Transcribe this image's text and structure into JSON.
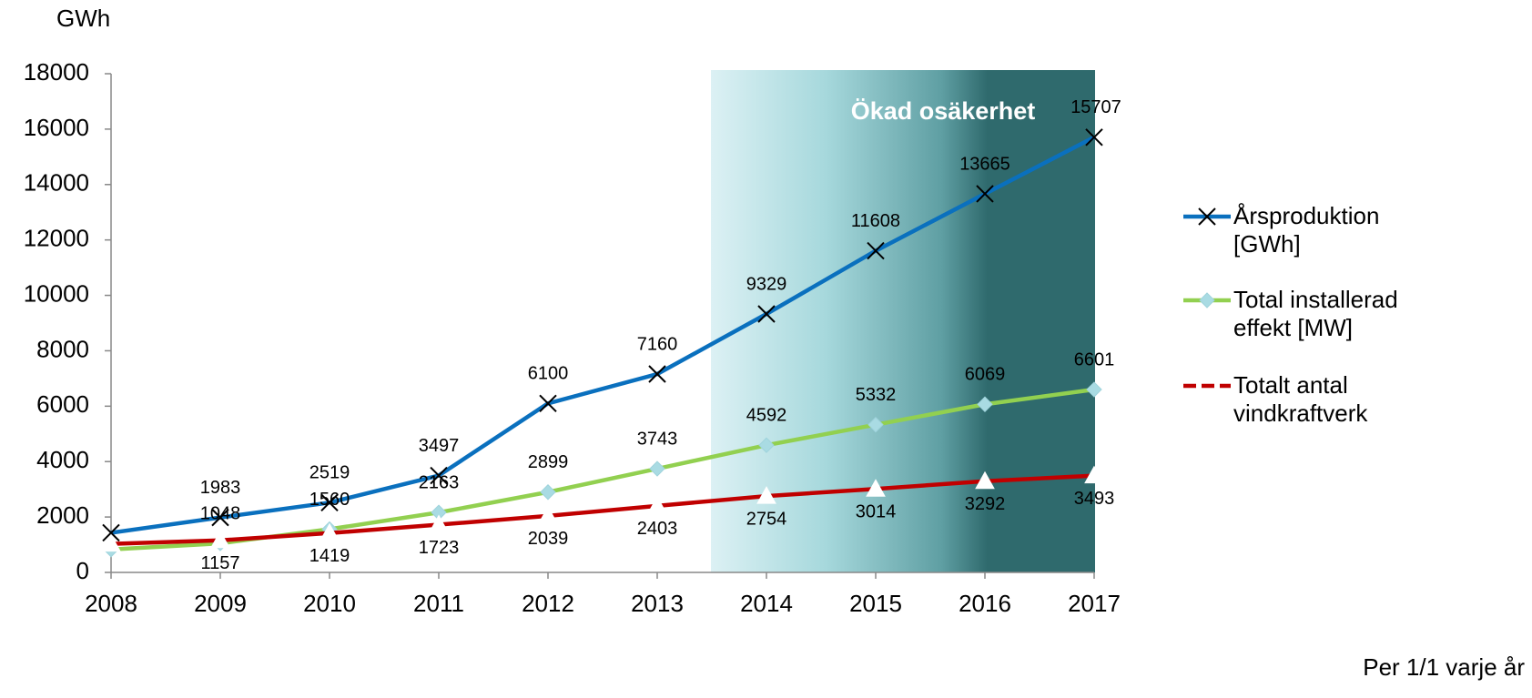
{
  "chart_data": {
    "type": "line",
    "y_unit": "GWh",
    "annotation": "Ökad osäkerhet",
    "footnote": "Per 1/1 varje år",
    "categories": [
      "2008",
      "2009",
      "2010",
      "2011",
      "2012",
      "2013",
      "2014",
      "2015",
      "2016",
      "2017"
    ],
    "ylim": [
      0,
      18000
    ],
    "yticks": [
      0,
      2000,
      4000,
      6000,
      8000,
      10000,
      12000,
      14000,
      16000,
      18000
    ],
    "legend": "right",
    "series": [
      {
        "name": "Årsproduktion [GWh]",
        "color": "#0a70be",
        "marker": "x",
        "values": [
          1430,
          1983,
          2519,
          3497,
          6100,
          7160,
          9329,
          11608,
          13665,
          15707
        ],
        "value_labels": [
          null,
          "1983",
          "2519",
          "3497",
          "6100",
          "7160",
          "9329",
          "11608",
          "13665",
          "15707"
        ]
      },
      {
        "name": "Total installerad effekt [MW]",
        "color": "#92d050",
        "marker": "diamond",
        "values": [
          830,
          1048,
          1560,
          2163,
          2899,
          3743,
          4592,
          5332,
          6069,
          6601
        ],
        "value_labels": [
          null,
          "1048",
          "1560",
          "2163",
          "2899",
          "3743",
          "4592",
          "5332",
          "6069",
          "6601"
        ]
      },
      {
        "name": "Totalt antal vindkraftverk",
        "color": "#c00000",
        "marker": "triangle",
        "values": [
          1030,
          1157,
          1419,
          1723,
          2039,
          2403,
          2754,
          3014,
          3292,
          3493
        ],
        "value_labels": [
          null,
          "1157",
          "1419",
          "1723",
          "2039",
          "2403",
          "2754",
          "3014",
          "3292",
          "3493"
        ]
      }
    ]
  }
}
